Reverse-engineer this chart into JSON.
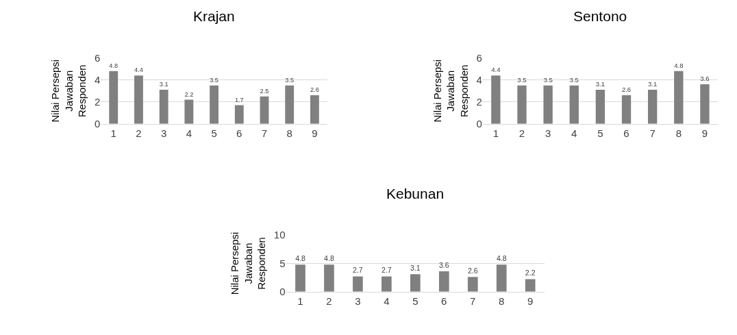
{
  "chart_data": [
    {
      "type": "bar",
      "title": "Krajan",
      "ylabel": "Nilai Persepsi Jawaban Responden",
      "categories": [
        "1",
        "2",
        "3",
        "4",
        "5",
        "6",
        "7",
        "8",
        "9"
      ],
      "values": [
        4.8,
        4.4,
        3.1,
        2.2,
        3.5,
        1.7,
        2.5,
        3.5,
        2.6
      ],
      "color": "#808080",
      "ylim": [
        0,
        6
      ],
      "yticks": [
        0,
        2,
        4,
        6
      ],
      "grid": "y",
      "data_labels": true
    },
    {
      "type": "bar",
      "title": "Sentono",
      "ylabel": "Nilai Persepsi Jawaban Responden",
      "categories": [
        "1",
        "2",
        "3",
        "4",
        "5",
        "6",
        "7",
        "8",
        "9"
      ],
      "values": [
        4.4,
        3.5,
        3.5,
        3.5,
        3.1,
        2.6,
        3.1,
        4.8,
        3.6
      ],
      "color": "#808080",
      "ylim": [
        0,
        6
      ],
      "yticks": [
        0,
        2,
        4,
        6
      ],
      "grid": "y",
      "data_labels": true
    },
    {
      "type": "bar",
      "title": "Kebunan",
      "ylabel": "Nilai Persepsi Jawaban Responden",
      "categories": [
        "1",
        "2",
        "3",
        "4",
        "5",
        "6",
        "7",
        "8",
        "9"
      ],
      "values": [
        4.8,
        4.8,
        2.7,
        2.7,
        3.1,
        3.6,
        2.6,
        4.8,
        2.2
      ],
      "color": "#808080",
      "ylim": [
        0,
        10
      ],
      "yticks": [
        0,
        5,
        10
      ],
      "grid": "y",
      "data_labels": true
    }
  ]
}
